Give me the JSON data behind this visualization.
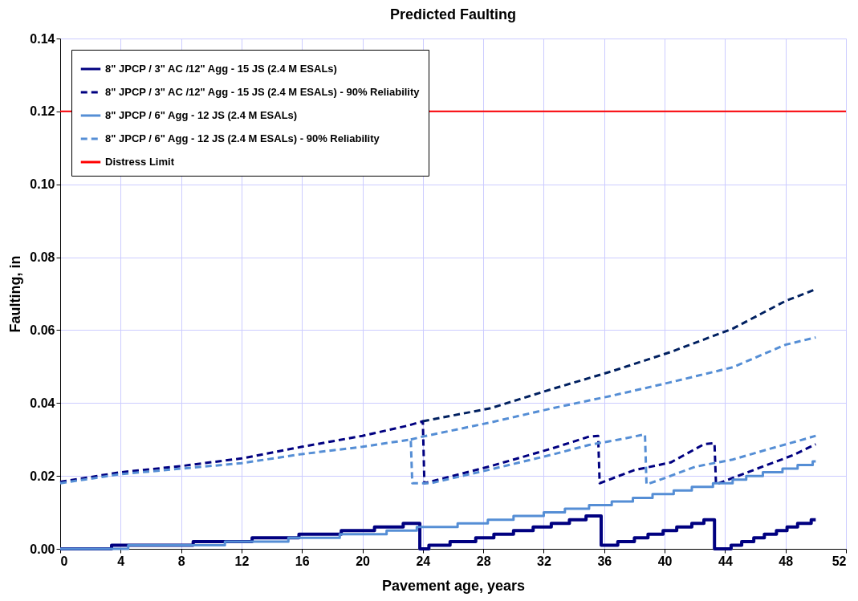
{
  "chart_data": {
    "type": "line",
    "title": "Predicted Faulting",
    "xlabel": "Pavement age, years",
    "ylabel": "Faulting, in",
    "xlim": [
      0,
      52
    ],
    "xticks": [
      0,
      4,
      8,
      12,
      16,
      20,
      24,
      28,
      32,
      36,
      40,
      44,
      48,
      52
    ],
    "ylim": [
      0,
      0.14
    ],
    "yticks": [
      {
        "value": 0,
        "label": "0.00"
      },
      {
        "value": 0.02,
        "label": "0.02"
      },
      {
        "value": 0.04,
        "label": "0.04"
      },
      {
        "value": 0.06,
        "label": "0.06"
      },
      {
        "value": 0.08,
        "label": "0.08"
      },
      {
        "value": 0.1,
        "label": "0.10"
      },
      {
        "value": 0.12,
        "label": "0.12"
      },
      {
        "value": 0.14,
        "label": "0.14"
      }
    ],
    "grid": true,
    "legend": "top left",
    "marker": "none",
    "series": [
      {
        "name": "8\" JPCP / 3\" AC /12\" Agg - 15 JS (2.4 M ESALs)",
        "type": "step",
        "line_style": "solid",
        "color": "#000080",
        "x": [
          0,
          3.4,
          8.8,
          12.7,
          15.8,
          18.6,
          20.8,
          22.7,
          23.8,
          24.4,
          25.8,
          27.5,
          28.7,
          30.0,
          31.3,
          32.5,
          33.7,
          34.8,
          35.8,
          36.9,
          38.0,
          38.9,
          39.9,
          40.8,
          41.8,
          42.6,
          43.3,
          44.4,
          45.1,
          45.9,
          46.6,
          47.4,
          48.1,
          48.8,
          49.7,
          50
        ],
        "values": [
          0,
          0.001,
          0.002,
          0.003,
          0.004,
          0.005,
          0.006,
          0.007,
          0,
          0.001,
          0.002,
          0.003,
          0.004,
          0.005,
          0.006,
          0.007,
          0.008,
          0.009,
          0.001,
          0.002,
          0.003,
          0.004,
          0.005,
          0.006,
          0.007,
          0.008,
          0,
          0.001,
          0.002,
          0.003,
          0.004,
          0.005,
          0.006,
          0.007,
          0.008,
          0.008
        ]
      },
      {
        "name": "8\" JPCP / 3\" AC /12\" Agg - 15 JS (2.4 M ESALs) - 90% Reliability",
        "type": "line",
        "line_style": "dashed",
        "color": "#000080",
        "x": [
          0,
          4,
          8,
          12,
          16,
          20,
          23,
          24,
          24.1,
          28.5,
          32.6,
          35,
          35.6,
          35.7,
          38,
          40.4,
          42.6,
          43.3,
          43.4,
          46,
          48.5,
          50
        ],
        "values": [
          0.0184,
          0.021,
          0.0227,
          0.0248,
          0.028,
          0.031,
          0.0338,
          0.035,
          0.018,
          0.0227,
          0.0276,
          0.0308,
          0.031,
          0.018,
          0.0216,
          0.0237,
          0.0287,
          0.029,
          0.0177,
          0.0218,
          0.0257,
          0.0287
        ]
      },
      {
        "name": "8\" JPCP / 6\" Agg - 12 JS (2.4 M ESALs)",
        "type": "step",
        "line_style": "solid",
        "color": "#558ed5",
        "x": [
          0,
          4.5,
          10.9,
          15.1,
          18.5,
          21.6,
          23.6,
          26.3,
          28.3,
          30.0,
          32.0,
          33.4,
          35.0,
          36.5,
          37.9,
          39.2,
          40.6,
          41.8,
          43.2,
          44.5,
          45.4,
          46.5,
          47.8,
          48.8,
          49.8,
          50
        ],
        "values": [
          0,
          0.001,
          0.002,
          0.003,
          0.004,
          0.005,
          0.006,
          0.007,
          0.008,
          0.009,
          0.01,
          0.011,
          0.012,
          0.013,
          0.014,
          0.015,
          0.016,
          0.017,
          0.018,
          0.019,
          0.02,
          0.021,
          0.022,
          0.023,
          0.024,
          0.024
        ]
      },
      {
        "name": "8\" JPCP / 6\" Agg - 12 JS (2.4 M ESALs) - 90% Reliability",
        "type": "line",
        "line_style": "dashed",
        "color": "#558ed5",
        "x": [
          0,
          4,
          8,
          12,
          16,
          20,
          23.2,
          23.3,
          24.5,
          28.5,
          32.6,
          35,
          37,
          38.7,
          38.8,
          40,
          42,
          44.5,
          47,
          49,
          50
        ],
        "values": [
          0.018,
          0.0205,
          0.022,
          0.0235,
          0.026,
          0.028,
          0.03,
          0.018,
          0.018,
          0.0218,
          0.0259,
          0.0285,
          0.03,
          0.0314,
          0.0177,
          0.0194,
          0.0225,
          0.0245,
          0.0275,
          0.0298,
          0.031
        ]
      },
      {
        "type": "line",
        "line_style": "dashed",
        "color": "#002060",
        "x": [
          24,
          28.5,
          32.6,
          36.5,
          40.4,
          44.5,
          48,
          50
        ],
        "values": [
          0.035,
          0.0386,
          0.0439,
          0.0487,
          0.054,
          0.0604,
          0.068,
          0.0712
        ]
      },
      {
        "type": "line",
        "line_style": "dashed",
        "color": "#558ed5",
        "x": [
          23.2,
          24,
          28.5,
          32.6,
          36.5,
          40.4,
          44.5,
          48,
          50
        ],
        "values": [
          0.03,
          0.0308,
          0.0347,
          0.0386,
          0.042,
          0.0457,
          0.0498,
          0.056,
          0.058
        ]
      }
    ],
    "ref_lines": [
      {
        "axis": "y",
        "value": 0.12,
        "label": "Distress Limit",
        "color": "#ff0000",
        "line_style": "solid"
      }
    ]
  }
}
